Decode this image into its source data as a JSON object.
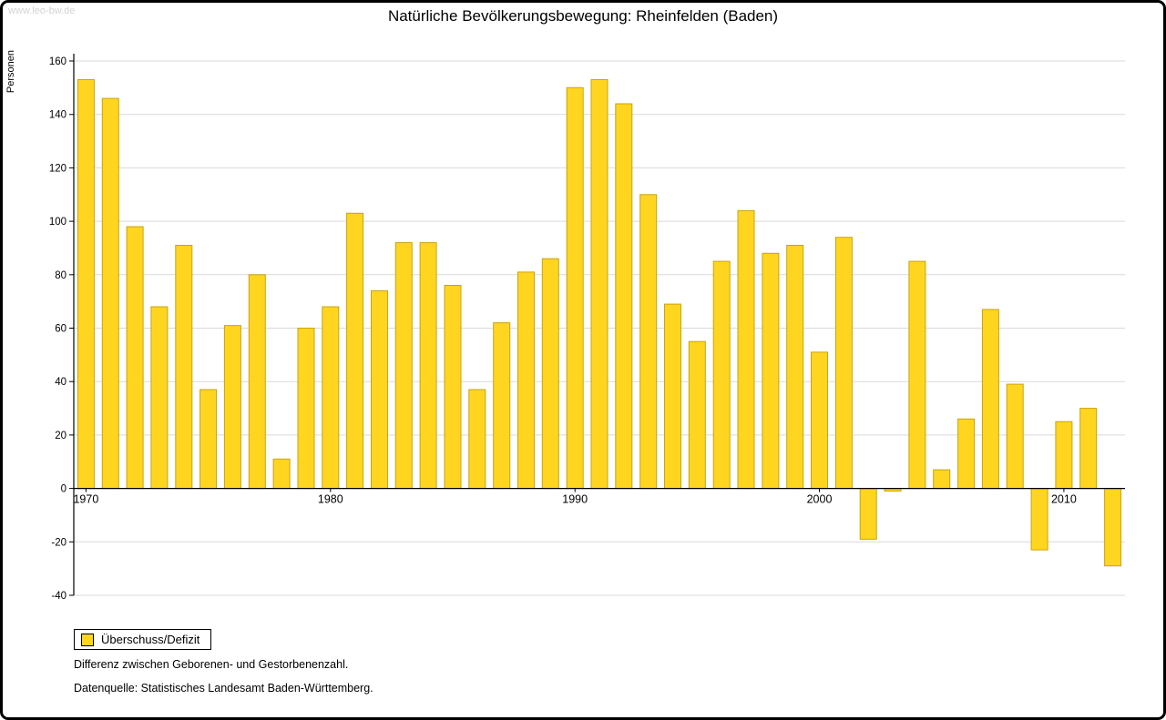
{
  "page": {
    "watermark": "www.leo-bw.de",
    "footnote": "Differenz zwischen Geborenen- und Gestorbenenzahl.",
    "source": "Datenquelle: Statistisches Landesamt Baden-Württemberg."
  },
  "chart_data": {
    "type": "bar",
    "title": "Natürliche Bevölkerungsbewegung: Rheinfelden (Baden)",
    "ylabel": "Personen",
    "xlabel": "",
    "legend_label": "Überschuss/Defizit",
    "legend_position": "bottom-left",
    "grid": true,
    "ylim": [
      -40,
      160
    ],
    "yticks": [
      -40,
      -20,
      0,
      20,
      40,
      60,
      80,
      100,
      120,
      140,
      160
    ],
    "xticks": [
      1970,
      1980,
      1990,
      2000,
      2010
    ],
    "years": [
      1970,
      1971,
      1972,
      1973,
      1974,
      1975,
      1976,
      1977,
      1978,
      1979,
      1980,
      1981,
      1982,
      1983,
      1984,
      1985,
      1986,
      1987,
      1988,
      1989,
      1990,
      1991,
      1992,
      1993,
      1994,
      1995,
      1996,
      1997,
      1998,
      1999,
      2000,
      2001,
      2002,
      2003,
      2004,
      2005,
      2006,
      2007,
      2008,
      2009,
      2010,
      2011,
      2012
    ],
    "values": [
      153,
      146,
      98,
      68,
      91,
      37,
      61,
      80,
      11,
      60,
      68,
      103,
      74,
      92,
      92,
      76,
      37,
      62,
      81,
      86,
      150,
      153,
      144,
      110,
      69,
      55,
      85,
      104,
      88,
      91,
      51,
      94,
      -19,
      -1,
      85,
      7,
      26,
      67,
      39,
      -23,
      25,
      30,
      -29
    ],
    "bar_color": "#FFD520",
    "bar_edge_color": "#C9A40E",
    "gridline_color": "#d9d9d9",
    "axis_color": "#000000"
  }
}
